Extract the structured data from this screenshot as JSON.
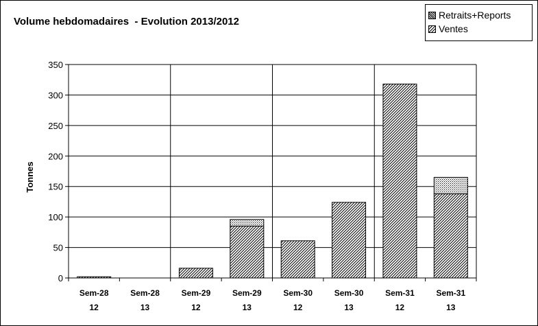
{
  "chart_data": {
    "type": "bar",
    "stacked": true,
    "title": "Volume hebdomadaires  - Evolution 2013/2012",
    "ylabel": "Tonnes",
    "xlabel": "",
    "ylim": [
      0,
      350
    ],
    "yticks": [
      "0",
      "50",
      "100",
      "150",
      "200",
      "250",
      "300",
      "350"
    ],
    "categories": [
      {
        "week": "Sem-28",
        "year": "12"
      },
      {
        "week": "Sem-28",
        "year": "13"
      },
      {
        "week": "Sem-29",
        "year": "12"
      },
      {
        "week": "Sem-29",
        "year": "13"
      },
      {
        "week": "Sem-30",
        "year": "12"
      },
      {
        "week": "Sem-30",
        "year": "13"
      },
      {
        "week": "Sem-31",
        "year": "12"
      },
      {
        "week": "Sem-31",
        "year": "13"
      }
    ],
    "series": [
      {
        "name": "Ventes",
        "pattern": "diagonal-hatch",
        "values": [
          2,
          0,
          16,
          85,
          61,
          124,
          318,
          138
        ]
      },
      {
        "name": "Retraits+Reports",
        "pattern": "crosshatch",
        "values": [
          0,
          0,
          0,
          11,
          0,
          0,
          0,
          27
        ]
      }
    ],
    "legend_order": [
      "Retraits+Reports",
      "Ventes"
    ],
    "legend_position": "top-right",
    "grid": "horizontal",
    "group_separators": true
  }
}
